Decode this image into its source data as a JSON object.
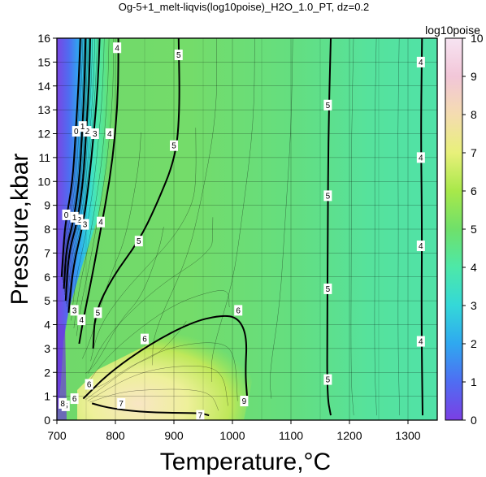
{
  "chart_data": {
    "type": "heatmap",
    "title": "Og-5+1_melt-liqvis(log10poise)_H2O_1.0_PT, dz=0.2",
    "xlabel": "Temperature,°C",
    "ylabel": "Pressure,kbar",
    "xlim": [
      700,
      1350
    ],
    "ylim": [
      0,
      16
    ],
    "x_ticks": [
      "700",
      "800",
      "900",
      "1000",
      "1100",
      "1200",
      "1300"
    ],
    "y_ticks": [
      "0",
      "1",
      "2",
      "3",
      "4",
      "5",
      "6",
      "7",
      "8",
      "9",
      "10",
      "11",
      "12",
      "13",
      "14",
      "15",
      "16"
    ],
    "grid": true,
    "colorbar": {
      "label": "log10poise",
      "range": [
        0,
        10
      ],
      "ticks": [
        "0",
        "1",
        "2",
        "3",
        "4",
        "5",
        "6",
        "7",
        "8",
        "9",
        "10"
      ],
      "colors": [
        "#7b3fe4",
        "#4f6df2",
        "#2fa8f0",
        "#34d8d8",
        "#4de8a8",
        "#6fe06a",
        "#a8e84a",
        "#e8f07a",
        "#f4dcb0",
        "#f2c6d8",
        "#f7e4f2"
      ]
    },
    "contours": [
      {
        "level": 4,
        "label": "4",
        "points": [
          [
            1325,
            0.2
          ],
          [
            1323,
            4
          ],
          [
            1324,
            8
          ],
          [
            1322,
            12
          ],
          [
            1324,
            16
          ]
        ]
      },
      {
        "level": 5,
        "label": "5",
        "points": [
          [
            1168,
            0.2
          ],
          [
            1162,
            1
          ],
          [
            1162,
            4
          ],
          [
            1163,
            8
          ],
          [
            1164,
            12
          ],
          [
            1168,
            16
          ]
        ]
      },
      {
        "level": 5,
        "label": "5",
        "points": [
          [
            762,
            3
          ],
          [
            765,
            4.5
          ],
          [
            795,
            6
          ],
          [
            840,
            7.5
          ],
          [
            870,
            9
          ],
          [
            903,
            11
          ],
          [
            910,
            13
          ],
          [
            908,
            16
          ]
        ]
      },
      {
        "level": 6,
        "label": "6",
        "points": [
          [
            745,
            0.9
          ],
          [
            790,
            2
          ],
          [
            860,
            3.2
          ],
          [
            930,
            4.1
          ],
          [
            980,
            4.4
          ],
          [
            1010,
            4.3
          ],
          [
            1025,
            3.5
          ],
          [
            1022,
            2
          ],
          [
            1025,
            1
          ]
        ]
      },
      {
        "level": 7,
        "label": "7",
        "points": [
          [
            760,
            0.7
          ],
          [
            790,
            0.5
          ],
          [
            840,
            0.35
          ],
          [
            900,
            0.3
          ],
          [
            945,
            0.3
          ],
          [
            960,
            0.2
          ]
        ]
      },
      {
        "level": 4,
        "label": "4",
        "points": [
          [
            738,
            3.2
          ],
          [
            745,
            4.2
          ],
          [
            760,
            6
          ],
          [
            775,
            8
          ],
          [
            790,
            10
          ],
          [
            800,
            12
          ],
          [
            805,
            14
          ],
          [
            805,
            16
          ]
        ]
      },
      {
        "level": 3,
        "label": "3",
        "points": [
          [
            720,
            4.5
          ],
          [
            728,
            6.5
          ],
          [
            745,
            8.2
          ],
          [
            755,
            10
          ],
          [
            763,
            12
          ],
          [
            770,
            14
          ],
          [
            773,
            16
          ]
        ]
      },
      {
        "level": 2,
        "label": "2",
        "points": [
          [
            715,
            5
          ],
          [
            720,
            7
          ],
          [
            735,
            8.3
          ],
          [
            745,
            10
          ],
          [
            750,
            12
          ],
          [
            755,
            14
          ],
          [
            757,
            16
          ]
        ]
      },
      {
        "level": 1,
        "label": "1",
        "points": [
          [
            712,
            5.5
          ],
          [
            716,
            7.2
          ],
          [
            728,
            8.3
          ],
          [
            738,
            10
          ],
          [
            743,
            12
          ],
          [
            747,
            14
          ],
          [
            749,
            16
          ]
        ]
      },
      {
        "level": 0,
        "label": "0",
        "points": [
          [
            708,
            6
          ],
          [
            712,
            7.5
          ],
          [
            715,
            8.3
          ],
          [
            727,
            10
          ],
          [
            732,
            12
          ],
          [
            737,
            14
          ],
          [
            740,
            16
          ]
        ]
      }
    ],
    "contour_labels": [
      {
        "text": "4",
        "x": 1322,
        "y": 15.0
      },
      {
        "text": "4",
        "x": 1322,
        "y": 11.0
      },
      {
        "text": "4",
        "x": 1322,
        "y": 7.3
      },
      {
        "text": "4",
        "x": 1322,
        "y": 3.3
      },
      {
        "text": "5",
        "x": 1163,
        "y": 13.2
      },
      {
        "text": "5",
        "x": 1163,
        "y": 9.4
      },
      {
        "text": "5",
        "x": 1163,
        "y": 5.5
      },
      {
        "text": "5",
        "x": 1163,
        "y": 1.7
      },
      {
        "text": "5",
        "x": 908,
        "y": 15.3
      },
      {
        "text": "5",
        "x": 900,
        "y": 11.5
      },
      {
        "text": "5",
        "x": 840,
        "y": 7.5
      },
      {
        "text": "5",
        "x": 770,
        "y": 4.5
      },
      {
        "text": "6",
        "x": 1010,
        "y": 4.6
      },
      {
        "text": "6",
        "x": 850,
        "y": 3.4
      },
      {
        "text": "6",
        "x": 755,
        "y": 1.5
      },
      {
        "text": "7",
        "x": 810,
        "y": 0.7
      },
      {
        "text": "7",
        "x": 945,
        "y": 0.2
      },
      {
        "text": "9",
        "x": 1020,
        "y": 0.8
      },
      {
        "text": "4",
        "x": 803,
        "y": 15.6
      },
      {
        "text": "4",
        "x": 790,
        "y": 12.0
      },
      {
        "text": "4",
        "x": 775,
        "y": 8.3
      },
      {
        "text": "4",
        "x": 742,
        "y": 4.2
      },
      {
        "text": "3",
        "x": 765,
        "y": 12.0
      },
      {
        "text": "3",
        "x": 748,
        "y": 8.2
      },
      {
        "text": "3",
        "x": 730,
        "y": 4.6
      },
      {
        "text": "2",
        "x": 752,
        "y": 12.1
      },
      {
        "text": "2",
        "x": 738,
        "y": 8.4
      },
      {
        "text": "1",
        "x": 744,
        "y": 12.3
      },
      {
        "text": "1",
        "x": 730,
        "y": 8.5
      },
      {
        "text": "0",
        "x": 733,
        "y": 12.1
      },
      {
        "text": "0",
        "x": 716,
        "y": 8.6
      },
      {
        "text": "6",
        "x": 730,
        "y": 0.9
      },
      {
        "text": "5",
        "x": 715,
        "y": 0.6
      },
      {
        "text": "8",
        "x": 710,
        "y": 0.7
      }
    ]
  }
}
